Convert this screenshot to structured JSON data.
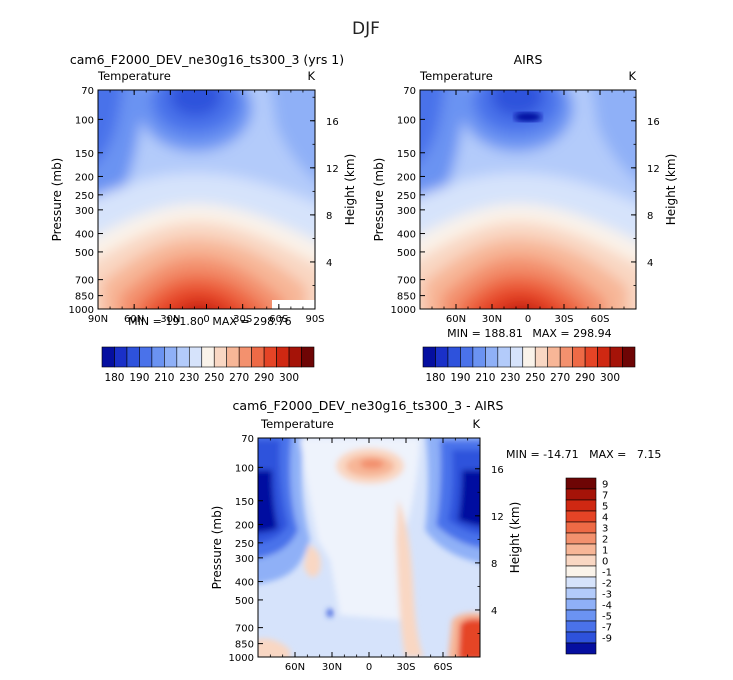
{
  "figure": {
    "title": "DJF"
  },
  "chart_data": [
    {
      "type": "heatmap",
      "title": "cam6_F2000_DEV_ne30g16_ts300_3 (yrs 1)",
      "subtitle_left": "Temperature",
      "subtitle_right": "K",
      "ylabel": "Pressure (mb)",
      "ylabel_right": "Height (km)",
      "xticks": [
        "90N",
        "60N",
        "30N",
        "0",
        "30S",
        "60S",
        "90S"
      ],
      "xlim": [
        90,
        -90
      ],
      "yticks": [
        "70",
        "100",
        "150",
        "200",
        "250",
        "300",
        "400",
        "500",
        "700",
        "850",
        "1000"
      ],
      "ylim": [
        1000,
        70
      ],
      "yticks_right": [
        "16",
        "12",
        "8",
        "4"
      ],
      "min_label": "MIN = 191.80",
      "max_label": "MAX = 298.76",
      "min": 191.8,
      "max": 298.76
    },
    {
      "type": "heatmap",
      "title": "AIRS",
      "subtitle_left": "Temperature",
      "subtitle_right": "K",
      "ylabel": "Pressure (mb)",
      "ylabel_right": "Height (km)",
      "xticks": [
        "60N",
        "30N",
        "0",
        "30S",
        "60S"
      ],
      "xlim": [
        90,
        -90
      ],
      "yticks": [
        "70",
        "100",
        "150",
        "200",
        "250",
        "300",
        "400",
        "500",
        "700",
        "850",
        "1000"
      ],
      "ylim": [
        1000,
        70
      ],
      "yticks_right": [
        "16",
        "12",
        "8",
        "4"
      ],
      "min_label": "MIN = 188.81",
      "max_label": "MAX = 298.94",
      "min": 188.81,
      "max": 298.94
    },
    {
      "type": "heatmap",
      "title": "cam6_F2000_DEV_ne30g16_ts300_3 - AIRS",
      "subtitle_left": "Temperature",
      "subtitle_right": "K",
      "ylabel": "Pressure (mb)",
      "ylabel_right": "Height (km)",
      "xticks": [
        "60N",
        "30N",
        "0",
        "30S",
        "60S"
      ],
      "xlim": [
        90,
        -90
      ],
      "yticks": [
        "70",
        "100",
        "150",
        "200",
        "250",
        "300",
        "400",
        "500",
        "700",
        "850",
        "1000"
      ],
      "ylim": [
        1000,
        70
      ],
      "yticks_right": [
        "16",
        "12",
        "8",
        "4"
      ],
      "stats_label": "MIN = -14.71   MAX =   7.15",
      "min": -14.71,
      "max": 7.15
    }
  ],
  "colorbar_abs": {
    "levels": [
      "180",
      "190",
      "210",
      "230",
      "250",
      "270",
      "290",
      "300"
    ],
    "colors": [
      "#050fa0",
      "#1a30c8",
      "#2e52dc",
      "#4a72ea",
      "#6b93f2",
      "#8fb0f7",
      "#b3cbfa",
      "#d6e3fb",
      "#faf3ea",
      "#f9d7c3",
      "#f7b697",
      "#f3916e",
      "#ee6a46",
      "#e54426",
      "#cf2812",
      "#a51308",
      "#6e0505"
    ]
  },
  "colorbar_diff": {
    "levels": [
      "9",
      "7",
      "5",
      "4",
      "3",
      "2",
      "1",
      "0",
      "-1",
      "-2",
      "-3",
      "-4",
      "-5",
      "-7",
      "-9"
    ],
    "colors": [
      "#6e0505",
      "#a51308",
      "#cf2812",
      "#e54426",
      "#ee6a46",
      "#f3916e",
      "#f7b697",
      "#f9d7c3",
      "#faf3ea",
      "#d6e3fb",
      "#b3cbfa",
      "#8fb0f7",
      "#6b93f2",
      "#4a72ea",
      "#2e52dc",
      "#050fa0"
    ]
  }
}
